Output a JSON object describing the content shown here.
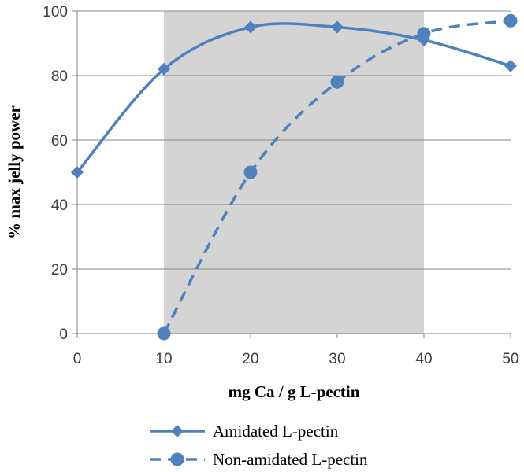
{
  "chart_data": {
    "type": "line",
    "x": [
      0,
      10,
      20,
      30,
      40,
      50
    ],
    "xlabel": "mg Ca / g L-pectin",
    "ylabel": "% max jelly power",
    "xlim": [
      0,
      50
    ],
    "ylim": [
      0,
      100
    ],
    "xticks": [
      0,
      10,
      20,
      30,
      40,
      50
    ],
    "yticks": [
      0,
      20,
      40,
      60,
      80,
      100
    ],
    "grid": "horizontal",
    "legend_position": "bottom",
    "shaded_region": {
      "x_from": 10,
      "x_to": 40,
      "color": "#d4d4d4"
    },
    "series": [
      {
        "name": "Amidated L-pectin",
        "style": "solid",
        "marker": "diamond",
        "color": "#4f81bd",
        "points": [
          {
            "x": 0,
            "y": 50
          },
          {
            "x": 10,
            "y": 82
          },
          {
            "x": 20,
            "y": 95
          },
          {
            "x": 30,
            "y": 95
          },
          {
            "x": 40,
            "y": 91
          },
          {
            "x": 50,
            "y": 83
          }
        ]
      },
      {
        "name": "Non-amidated L-pectin",
        "style": "dashed",
        "marker": "circle",
        "color": "#4f81bd",
        "points": [
          {
            "x": 10,
            "y": 0
          },
          {
            "x": 20,
            "y": 50
          },
          {
            "x": 30,
            "y": 78
          },
          {
            "x": 40,
            "y": 93
          },
          {
            "x": 50,
            "y": 97
          }
        ]
      }
    ]
  }
}
